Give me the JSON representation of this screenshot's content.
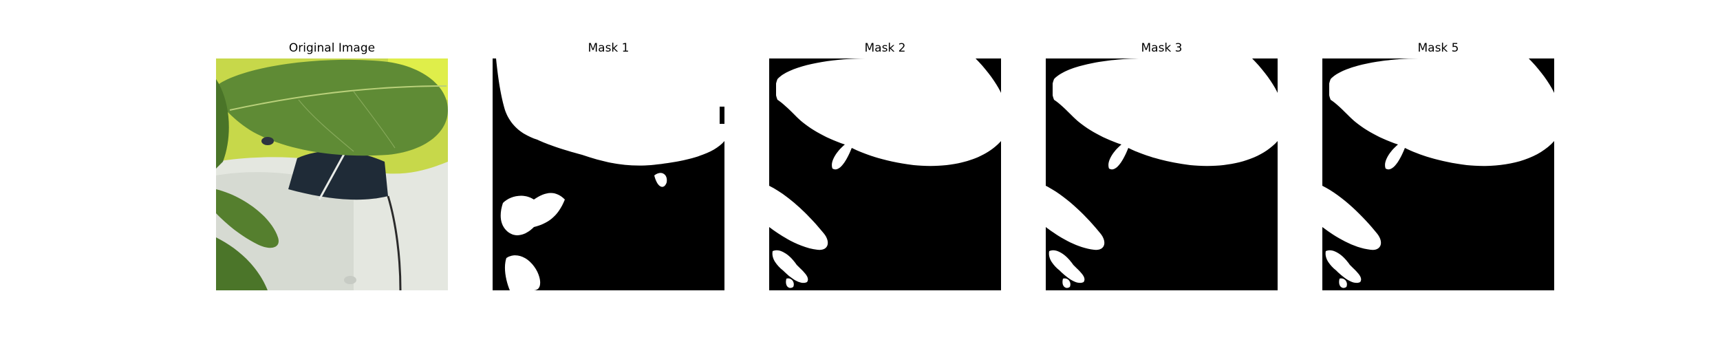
{
  "panels": [
    {
      "title": "Original Image",
      "kind": "photo"
    },
    {
      "title": "Mask 1",
      "kind": "mask"
    },
    {
      "title": "Mask 2",
      "kind": "mask"
    },
    {
      "title": "Mask 3",
      "kind": "mask"
    },
    {
      "title": "Mask 5",
      "kind": "mask"
    }
  ],
  "colors": {
    "figure_background": "#ffffff",
    "mask_foreground": "#ffffff",
    "mask_background": "#000000",
    "leaf_green": "#5f8a34",
    "leaf_dark": "#3e6322",
    "background_yellow_green": "#c8dc3c",
    "white_object": "#e6e8e2",
    "dark_opening": "#1e2a36"
  }
}
